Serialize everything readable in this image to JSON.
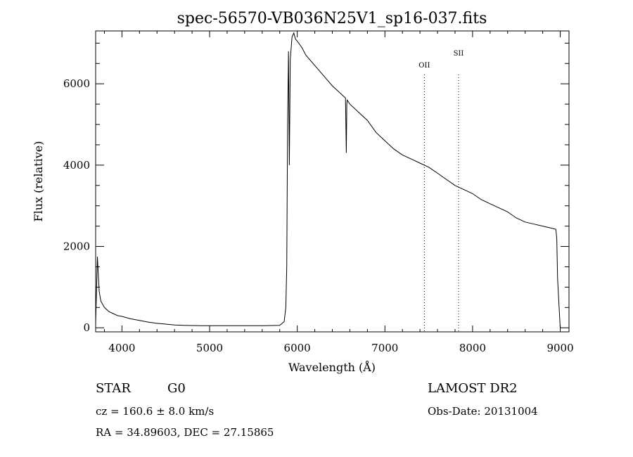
{
  "chart_data": {
    "type": "line",
    "title": "spec-56570-VB036N25V1_sp16-037.fits",
    "xlabel": "Wavelength (Å)",
    "ylabel": "Flux (relative)",
    "xlim": [
      3700,
      9100
    ],
    "ylim": [
      -100,
      7300
    ],
    "x_ticks": [
      "4000",
      "5000",
      "6000",
      "7000",
      "8000",
      "9000"
    ],
    "y_ticks": [
      "0",
      "2000",
      "4000",
      "6000"
    ],
    "grid": false,
    "series": [
      {
        "x": [
          3700,
          3720,
          3740,
          3760,
          3800,
          3850,
          3900,
          3950,
          4000,
          4100,
          4200,
          4300,
          4400,
          4500,
          4600,
          4700,
          4800,
          4900,
          5000,
          5200,
          5400,
          5600,
          5800,
          5850,
          5870,
          5880,
          5890,
          5900,
          5910,
          5920,
          5940,
          5960,
          5980,
          6000,
          6050,
          6100,
          6200,
          6300,
          6400,
          6500,
          6550,
          6560,
          6565,
          6570,
          6600,
          6700,
          6800,
          6900,
          7000,
          7100,
          7200,
          7300,
          7400,
          7500,
          7600,
          7700,
          7800,
          7900,
          8000,
          8100,
          8200,
          8300,
          8400,
          8500,
          8550,
          8600,
          8700,
          8800,
          8900,
          8950,
          8960,
          8970,
          9000
        ],
        "y": [
          100,
          1750,
          900,
          650,
          500,
          400,
          350,
          300,
          280,
          220,
          180,
          140,
          110,
          90,
          70,
          60,
          55,
          50,
          50,
          50,
          50,
          50,
          60,
          150,
          500,
          1500,
          5000,
          6800,
          4000,
          6600,
          7150,
          7250,
          7100,
          7050,
          6900,
          6700,
          6450,
          6200,
          5950,
          5750,
          5650,
          4300,
          5500,
          5600,
          5500,
          5300,
          5100,
          4800,
          4600,
          4400,
          4250,
          4150,
          4050,
          3950,
          3800,
          3650,
          3500,
          3400,
          3300,
          3150,
          3050,
          2950,
          2850,
          2700,
          2650,
          2600,
          2550,
          2500,
          2450,
          2420,
          2200,
          1200,
          0
        ]
      }
    ],
    "annotations": [
      {
        "label": "OII",
        "x": 7450
      },
      {
        "label": "SII",
        "x": 7840
      }
    ]
  },
  "info": {
    "class": "STAR",
    "subclass": "G0",
    "survey": "LAMOST DR2",
    "cz": "cz = 160.6 ± 8.0 km/s",
    "obs_date": "Obs-Date: 20131004",
    "radec": "RA =  34.89603, DEC =  27.15865"
  }
}
